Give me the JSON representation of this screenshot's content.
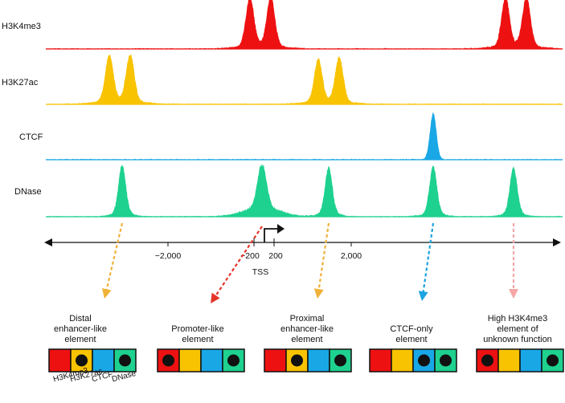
{
  "tracks": [
    {
      "key": "h3k4me3",
      "label": "H3K4me3",
      "color": "#ee1111",
      "baseline_color": "#ee1111"
    },
    {
      "key": "h3k27ac",
      "label": "H3K27ac",
      "color": "#f8c300",
      "baseline_color": "#f8c300"
    },
    {
      "key": "ctcf",
      "label": "CTCF",
      "color": "#19a7e6",
      "baseline_color": "#19a7e6"
    },
    {
      "key": "dnase",
      "label": "DNase",
      "color": "#1ed18f",
      "baseline_color": "#1ed18f"
    }
  ],
  "axis": {
    "ticks": [
      "−2,000",
      "−200",
      "200",
      "2,000"
    ],
    "tss_label": "TSS"
  },
  "elements": [
    {
      "key": "distal",
      "caption": [
        "Distal",
        "enhancer-like",
        "element"
      ],
      "arrow_color": "#f0b13a",
      "marks": {
        "h3k4me3": false,
        "h3k27ac": true,
        "ctcf": false,
        "dnase": true
      }
    },
    {
      "key": "promoter",
      "caption": [
        "Promoter-like",
        "element"
      ],
      "arrow_color": "#e4352b",
      "marks": {
        "h3k4me3": true,
        "h3k27ac": false,
        "ctcf": false,
        "dnase": true
      }
    },
    {
      "key": "proximal",
      "caption": [
        "Proximal",
        "enhancer-like",
        "element"
      ],
      "arrow_color": "#f0b13a",
      "marks": {
        "h3k4me3": false,
        "h3k27ac": true,
        "ctcf": false,
        "dnase": true
      }
    },
    {
      "key": "ctcf_only",
      "caption": [
        "CTCF-only",
        "element"
      ],
      "arrow_color": "#1aa3e0",
      "marks": {
        "h3k4me3": false,
        "h3k27ac": false,
        "ctcf": true,
        "dnase": true
      }
    },
    {
      "key": "high_h3k4me3",
      "caption": [
        "High H3K4me3",
        "element of",
        "unknown function"
      ],
      "arrow_color": "#f4a6a6",
      "marks": {
        "h3k4me3": true,
        "h3k27ac": false,
        "ctcf": false,
        "dnase": true
      }
    }
  ],
  "legend": [
    "H3K4me3",
    "H3K27ac",
    "CTCF",
    "DNase"
  ],
  "colors": {
    "axis": "#111111",
    "box_border": "#111111",
    "dot": "#111111"
  }
}
